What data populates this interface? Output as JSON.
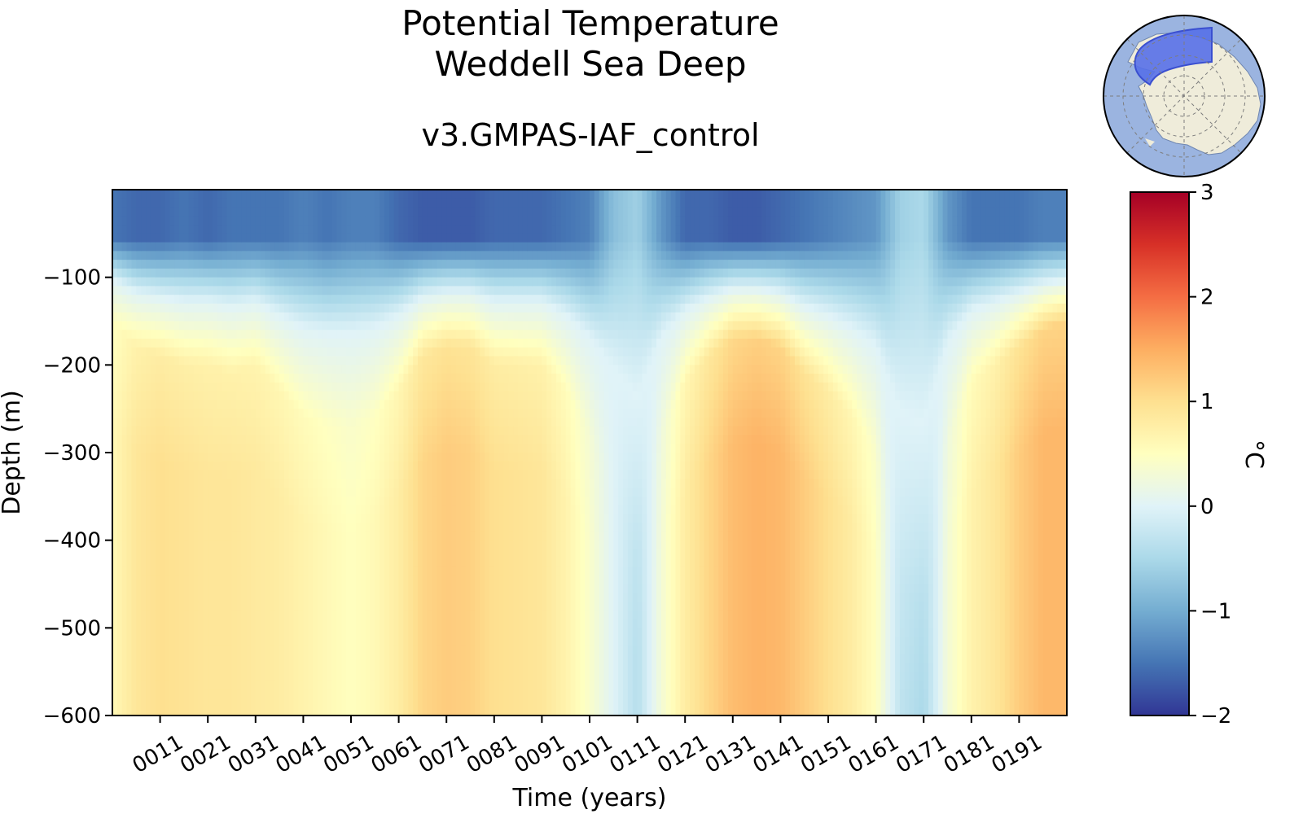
{
  "chart_data": {
    "type": "heatmap",
    "title": "Potential Temperature",
    "subtitle": "Weddell Sea Deep",
    "run_name": "v3.GMPAS-IAF_control",
    "xlabel": "Time (years)",
    "ylabel": "Depth (m)",
    "xlim": [
      1,
      201
    ],
    "ylim": [
      -600,
      0
    ],
    "x_ticks": [
      "0011",
      "0021",
      "0031",
      "0041",
      "0051",
      "0061",
      "0071",
      "0081",
      "0091",
      "0101",
      "0111",
      "0121",
      "0131",
      "0141",
      "0151",
      "0161",
      "0171",
      "0181",
      "0191"
    ],
    "x_tick_values": [
      11,
      21,
      31,
      41,
      51,
      61,
      71,
      81,
      91,
      101,
      111,
      121,
      131,
      141,
      151,
      161,
      171,
      181,
      191
    ],
    "y_ticks": [
      "−100",
      "−200",
      "−300",
      "−400",
      "−500",
      "−600"
    ],
    "y_tick_values": [
      -100,
      -200,
      -300,
      -400,
      -500,
      -600
    ],
    "colorbar": {
      "label": "°C",
      "vmin": -2,
      "vmax": 3,
      "colormap": "RdYlBu_r",
      "ticks": [
        "3",
        "2",
        "1",
        "0",
        "−1",
        "−2"
      ],
      "tick_values": [
        3,
        2,
        1,
        0,
        -1,
        -2
      ]
    },
    "depths": [
      0,
      -25,
      -50,
      -75,
      -100,
      -150,
      -200,
      -250,
      -300,
      -400,
      -500,
      -600
    ],
    "years": [
      1,
      6,
      11,
      16,
      21,
      26,
      31,
      36,
      41,
      46,
      51,
      56,
      61,
      66,
      71,
      76,
      81,
      86,
      91,
      96,
      101,
      106,
      111,
      116,
      121,
      126,
      131,
      136,
      141,
      146,
      151,
      156,
      161,
      166,
      171,
      176,
      181,
      186,
      191,
      196,
      201
    ],
    "deep_temperature": [
      0.6,
      0.9,
      1.0,
      0.95,
      0.9,
      0.9,
      0.85,
      0.8,
      0.7,
      0.6,
      0.5,
      0.6,
      0.8,
      1.1,
      1.2,
      1.15,
      1.0,
      0.95,
      0.9,
      0.7,
      0.4,
      0.0,
      -0.4,
      0.3,
      0.8,
      1.1,
      1.35,
      1.45,
      1.4,
      1.2,
      1.0,
      0.8,
      0.5,
      -0.3,
      -0.5,
      0.3,
      0.7,
      0.9,
      1.2,
      1.4,
      1.4
    ],
    "thermocline_depth": [
      150,
      180,
      190,
      200,
      200,
      210,
      200,
      230,
      260,
      270,
      270,
      260,
      230,
      190,
      180,
      180,
      200,
      200,
      200,
      230,
      280,
      350,
      420,
      280,
      220,
      190,
      170,
      170,
      180,
      210,
      230,
      260,
      300,
      450,
      480,
      290,
      220,
      200,
      180,
      160,
      150
    ],
    "surface_temperature": [
      -1.5,
      -1.6,
      -1.6,
      -1.5,
      -1.6,
      -1.5,
      -1.5,
      -1.5,
      -1.4,
      -1.5,
      -1.4,
      -1.4,
      -1.6,
      -1.7,
      -1.7,
      -1.7,
      -1.6,
      -1.6,
      -1.6,
      -1.5,
      -1.4,
      -0.8,
      -0.6,
      -1.2,
      -1.6,
      -1.6,
      -1.7,
      -1.7,
      -1.6,
      -1.5,
      -1.4,
      -1.3,
      -1.2,
      -0.6,
      -0.5,
      -1.2,
      -1.5,
      -1.5,
      -1.5,
      -1.4,
      -1.4
    ]
  },
  "inset_map": {
    "description_icon": "antarctica-region-map-icon",
    "colors": {
      "ocean": "#9bb4e0",
      "land": "#efecda",
      "region": "#5670e8"
    }
  }
}
